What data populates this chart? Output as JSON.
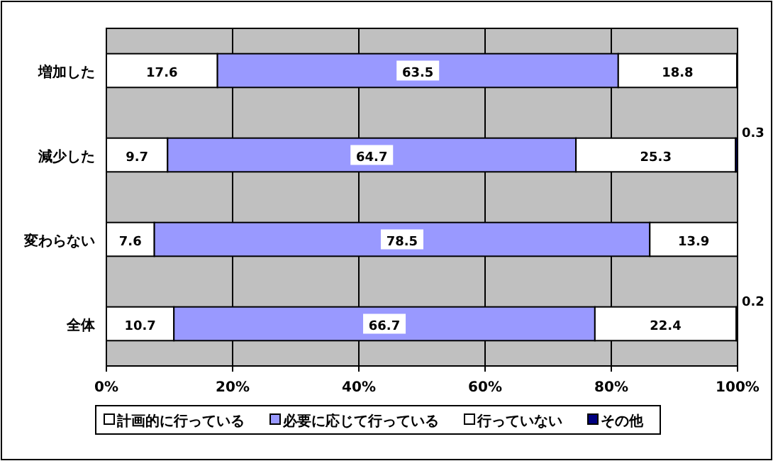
{
  "chart_data": {
    "type": "bar",
    "orientation": "horizontal",
    "stacked": true,
    "categories": [
      "増加した",
      "減少した",
      "変わらない",
      "全体"
    ],
    "series": [
      {
        "name": "計画的に行っている",
        "color": "#ffffff",
        "values": [
          17.6,
          9.7,
          7.6,
          10.7
        ]
      },
      {
        "name": "必要に応じて行っている",
        "color": "#9999ff",
        "values": [
          63.5,
          64.7,
          78.5,
          66.7
        ]
      },
      {
        "name": "行っていない",
        "color": "#ffffff",
        "values": [
          18.8,
          25.3,
          13.9,
          22.4
        ]
      },
      {
        "name": "その他",
        "color": "#000080",
        "values": [
          0.1,
          0.3,
          0.0,
          0.2
        ],
        "value_labels": [
          null,
          "0.3",
          null,
          "0.2"
        ]
      }
    ],
    "data_labels": true,
    "xlim": [
      0,
      100
    ],
    "xticks": [
      {
        "value": 0,
        "label": "0%"
      },
      {
        "value": 20,
        "label": "20%"
      },
      {
        "value": 40,
        "label": "40%"
      },
      {
        "value": 60,
        "label": "60%"
      },
      {
        "value": 80,
        "label": "80%"
      },
      {
        "value": 100,
        "label": "100%"
      }
    ],
    "grid": "x",
    "legend": "bottom"
  }
}
